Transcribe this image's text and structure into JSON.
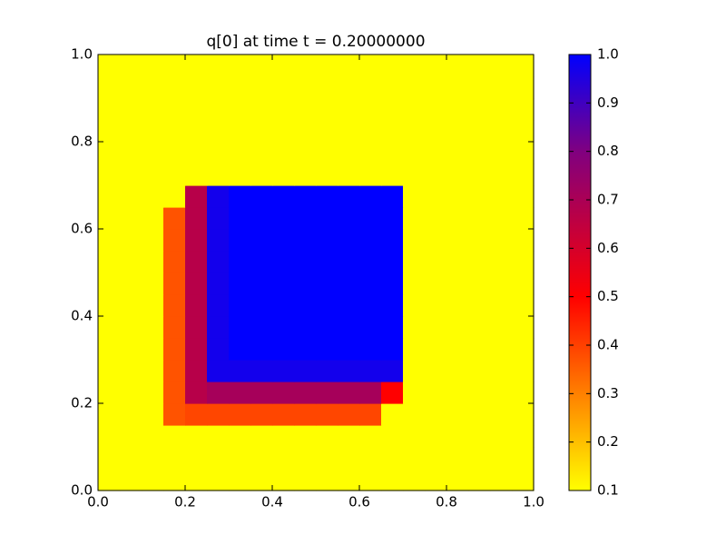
{
  "chart_data": {
    "type": "heatmap",
    "title": "q[0] at time t =     0.20000000",
    "xlim": [
      0,
      1
    ],
    "ylim": [
      0,
      1
    ],
    "xticks": [
      {
        "value": 0,
        "label": "0.0"
      },
      0.2,
      0.4,
      0.6,
      0.8,
      {
        "value": 1,
        "label": "1.0"
      }
    ],
    "yticks": [
      {
        "value": 0,
        "label": "0.0"
      },
      0.2,
      0.4,
      0.6,
      0.8,
      {
        "value": 1,
        "label": "1.0"
      }
    ],
    "colormap": [
      {
        "value": 0.1,
        "color": "#ffff00"
      },
      {
        "value": 0.3,
        "color": "#ff8000"
      },
      {
        "value": 0.5,
        "color": "#ff0000"
      },
      {
        "value": 0.8,
        "color": "#800080"
      },
      {
        "value": 1,
        "color": "#0000ff"
      }
    ],
    "clim": [
      0.1,
      1
    ],
    "cticks": [
      0.1,
      0.2,
      0.3,
      0.4,
      0.5,
      0.6,
      0.7,
      0.8,
      0.9,
      {
        "value": 1,
        "label": "1.0"
      }
    ],
    "z": [
      [
        0.1,
        0.1,
        0.1,
        0.1,
        0.1,
        0.1,
        0.1,
        0.1,
        0.1,
        0.1,
        0.1,
        0.1,
        0.1,
        0.1,
        0.1,
        0.1,
        0.1,
        0.1,
        0.1,
        0.1
      ],
      [
        0.1,
        0.1,
        0.1,
        0.1,
        0.1,
        0.1,
        0.1,
        0.1,
        0.1,
        0.1,
        0.1,
        0.1,
        0.1,
        0.1,
        0.1,
        0.1,
        0.1,
        0.1,
        0.1,
        0.1
      ],
      [
        0.1,
        0.1,
        0.1,
        0.1,
        0.1,
        0.1,
        0.1,
        0.1,
        0.1,
        0.1,
        0.1,
        0.1,
        0.1,
        0.1,
        0.1,
        0.1,
        0.1,
        0.1,
        0.1,
        0.1
      ],
      [
        0.1,
        0.1,
        0.1,
        0.37,
        0.39,
        0.39,
        0.39,
        0.39,
        0.39,
        0.39,
        0.39,
        0.39,
        0.39,
        0.1,
        0.1,
        0.1,
        0.1,
        0.1,
        0.1,
        0.1
      ],
      [
        0.1,
        0.1,
        0.1,
        0.37,
        0.67,
        0.71,
        0.71,
        0.71,
        0.71,
        0.71,
        0.71,
        0.71,
        0.71,
        0.5,
        0.1,
        0.1,
        0.1,
        0.1,
        0.1,
        0.1
      ],
      [
        0.1,
        0.1,
        0.1,
        0.37,
        0.67,
        0.97,
        0.97,
        0.97,
        0.97,
        0.97,
        0.97,
        0.97,
        0.97,
        0.97,
        0.1,
        0.1,
        0.1,
        0.1,
        0.1,
        0.1
      ],
      [
        0.1,
        0.1,
        0.1,
        0.37,
        0.67,
        0.97,
        1,
        1,
        1,
        1,
        1,
        1,
        1,
        1,
        0.1,
        0.1,
        0.1,
        0.1,
        0.1,
        0.1
      ],
      [
        0.1,
        0.1,
        0.1,
        0.37,
        0.67,
        0.97,
        1,
        1,
        1,
        1,
        1,
        1,
        1,
        1,
        0.1,
        0.1,
        0.1,
        0.1,
        0.1,
        0.1
      ],
      [
        0.1,
        0.1,
        0.1,
        0.37,
        0.67,
        0.97,
        1,
        1,
        1,
        1,
        1,
        1,
        1,
        1,
        0.1,
        0.1,
        0.1,
        0.1,
        0.1,
        0.1
      ],
      [
        0.1,
        0.1,
        0.1,
        0.37,
        0.67,
        0.97,
        1,
        1,
        1,
        1,
        1,
        1,
        1,
        1,
        0.1,
        0.1,
        0.1,
        0.1,
        0.1,
        0.1
      ],
      [
        0.1,
        0.1,
        0.1,
        0.37,
        0.67,
        0.97,
        1,
        1,
        1,
        1,
        1,
        1,
        1,
        1,
        0.1,
        0.1,
        0.1,
        0.1,
        0.1,
        0.1
      ],
      [
        0.1,
        0.1,
        0.1,
        0.37,
        0.67,
        0.97,
        1,
        1,
        1,
        1,
        1,
        1,
        1,
        1,
        0.1,
        0.1,
        0.1,
        0.1,
        0.1,
        0.1
      ],
      [
        0.1,
        0.1,
        0.1,
        0.37,
        0.67,
        0.97,
        1,
        1,
        1,
        1,
        1,
        1,
        1,
        1,
        0.1,
        0.1,
        0.1,
        0.1,
        0.1,
        0.1
      ],
      [
        0.1,
        0.1,
        0.1,
        0.1,
        0.67,
        0.97,
        1,
        1,
        1,
        1,
        1,
        1,
        1,
        1,
        0.1,
        0.1,
        0.1,
        0.1,
        0.1,
        0.1
      ],
      [
        0.1,
        0.1,
        0.1,
        0.1,
        0.1,
        0.1,
        0.1,
        0.1,
        0.1,
        0.1,
        0.1,
        0.1,
        0.1,
        0.1,
        0.1,
        0.1,
        0.1,
        0.1,
        0.1,
        0.1
      ],
      [
        0.1,
        0.1,
        0.1,
        0.1,
        0.1,
        0.1,
        0.1,
        0.1,
        0.1,
        0.1,
        0.1,
        0.1,
        0.1,
        0.1,
        0.1,
        0.1,
        0.1,
        0.1,
        0.1,
        0.1
      ],
      [
        0.1,
        0.1,
        0.1,
        0.1,
        0.1,
        0.1,
        0.1,
        0.1,
        0.1,
        0.1,
        0.1,
        0.1,
        0.1,
        0.1,
        0.1,
        0.1,
        0.1,
        0.1,
        0.1,
        0.1
      ],
      [
        0.1,
        0.1,
        0.1,
        0.1,
        0.1,
        0.1,
        0.1,
        0.1,
        0.1,
        0.1,
        0.1,
        0.1,
        0.1,
        0.1,
        0.1,
        0.1,
        0.1,
        0.1,
        0.1,
        0.1
      ],
      [
        0.1,
        0.1,
        0.1,
        0.1,
        0.1,
        0.1,
        0.1,
        0.1,
        0.1,
        0.1,
        0.1,
        0.1,
        0.1,
        0.1,
        0.1,
        0.1,
        0.1,
        0.1,
        0.1,
        0.1
      ],
      [
        0.1,
        0.1,
        0.1,
        0.1,
        0.1,
        0.1,
        0.1,
        0.1,
        0.1,
        0.1,
        0.1,
        0.1,
        0.1,
        0.1,
        0.1,
        0.1,
        0.1,
        0.1,
        0.1,
        0.1
      ]
    ]
  }
}
